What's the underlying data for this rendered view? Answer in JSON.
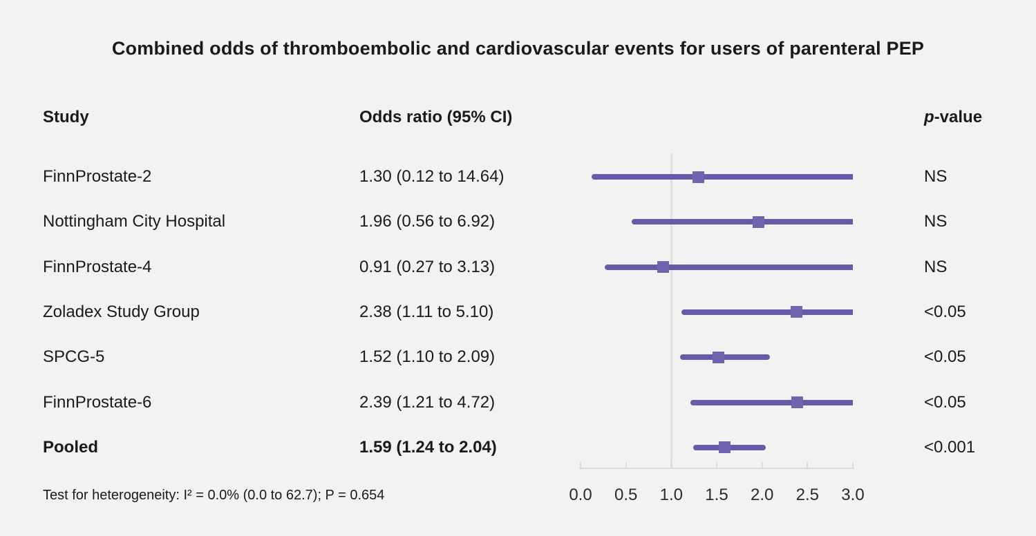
{
  "title": "Combined odds of thromboembolic and cardiovascular events for users of parenteral PEP",
  "columns": {
    "study": "Study",
    "odds_ratio": "Odds ratio (95% CI)",
    "p_italic": "p",
    "p_rest": "-value"
  },
  "rows": [
    {
      "study": "FinnProstate-2",
      "or_ci": "1.30 (0.12 to 14.64)",
      "p": "NS"
    },
    {
      "study": "Nottingham City Hospital",
      "or_ci": "1.96 (0.56 to 6.92)",
      "p": "NS"
    },
    {
      "study": "FinnProstate-4",
      "or_ci": "0.91 (0.27 to 3.13)",
      "p": "NS"
    },
    {
      "study": "Zoladex Study Group",
      "or_ci": "2.38 (1.11 to 5.10)",
      "p": "<0.05"
    },
    {
      "study": "SPCG-5",
      "or_ci": "1.52 (1.10 to 2.09)",
      "p": "<0.05"
    },
    {
      "study": "FinnProstate-6",
      "or_ci": "2.39 (1.21 to 4.72)",
      "p": "<0.05"
    },
    {
      "study": "Pooled",
      "or_ci": "1.59 (1.24 to 2.04)",
      "p": "<0.001"
    }
  ],
  "footnote": "Test for heterogeneity: I² = 0.0% (0.0 to 62.7); P = 0.654",
  "colors": {
    "background": "#f2f2f2",
    "text": "#1a1a1a",
    "ci_line": "#6a59a6",
    "marker": "#7263ae",
    "reference_line": "#dde1e4",
    "axis": "#d9dbde"
  },
  "chart_data": {
    "type": "forest",
    "title": "Combined odds of thromboembolic and cardiovascular events for users of parenteral PEP",
    "x_range": [
      0.0,
      3.0
    ],
    "x_ticks": [
      "0.0",
      "0.5",
      "1.0",
      "1.5",
      "2.0",
      "2.5",
      "3.0"
    ],
    "reference_line": 1.0,
    "grid": false,
    "points": [
      {
        "label": "FinnProstate-2",
        "or": 1.3,
        "ci_low": 0.12,
        "ci_high": 14.64,
        "p": "NS",
        "pooled": false
      },
      {
        "label": "Nottingham City Hospital",
        "or": 1.96,
        "ci_low": 0.56,
        "ci_high": 6.92,
        "p": "NS",
        "pooled": false
      },
      {
        "label": "FinnProstate-4",
        "or": 0.91,
        "ci_low": 0.27,
        "ci_high": 3.13,
        "p": "NS",
        "pooled": false
      },
      {
        "label": "Zoladex Study Group",
        "or": 2.38,
        "ci_low": 1.11,
        "ci_high": 5.1,
        "p": "<0.05",
        "pooled": false
      },
      {
        "label": "SPCG-5",
        "or": 1.52,
        "ci_low": 1.1,
        "ci_high": 2.09,
        "p": "<0.05",
        "pooled": false
      },
      {
        "label": "FinnProstate-6",
        "or": 2.39,
        "ci_low": 1.21,
        "ci_high": 4.72,
        "p": "<0.05",
        "pooled": false
      },
      {
        "label": "Pooled",
        "or": 1.59,
        "ci_low": 1.24,
        "ci_high": 2.04,
        "p": "<0.001",
        "pooled": true
      }
    ],
    "heterogeneity_note": "Test for heterogeneity: I² = 0.0% (0.0 to 62.7); P = 0.654"
  }
}
